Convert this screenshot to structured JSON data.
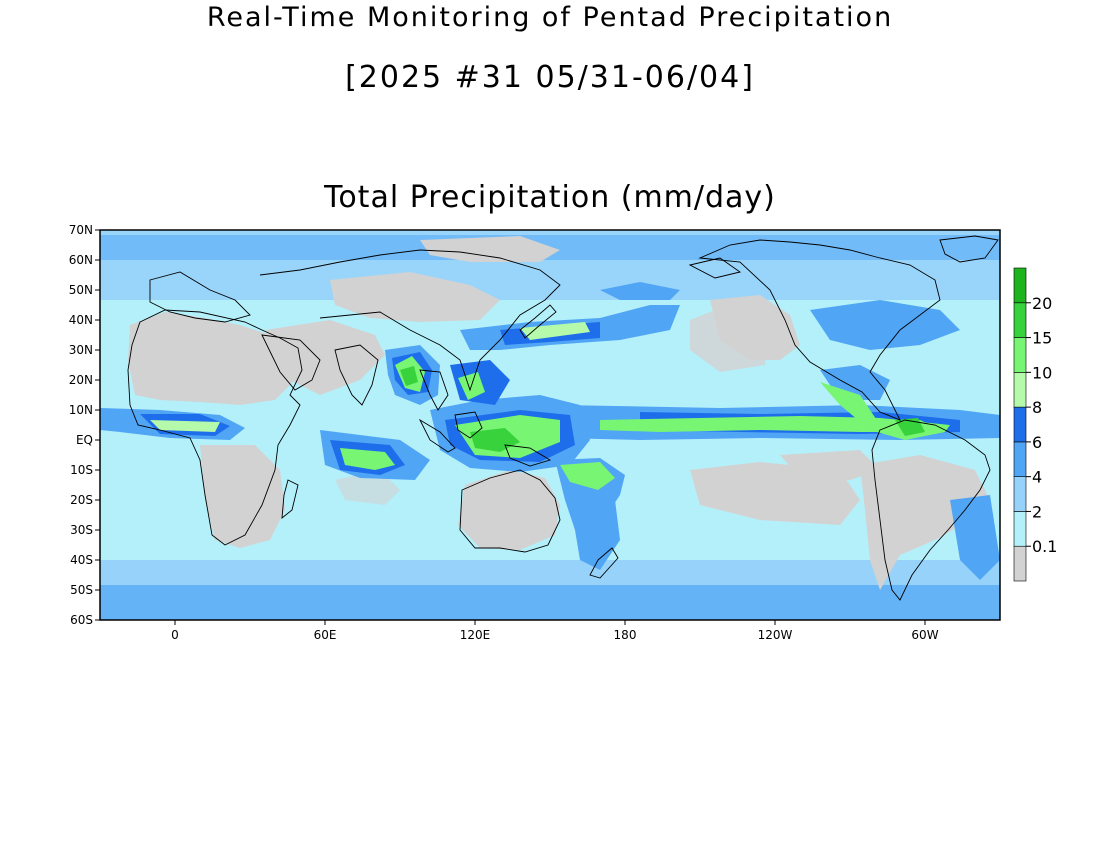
{
  "title": "Real-Time Monitoring of Pentad Precipitation",
  "subtitle": "[2025 #31 05/31-06/04]",
  "map_title": "Total Precipitation (mm/day)",
  "lat_labels": [
    "70N",
    "60N",
    "50N",
    "40N",
    "30N",
    "20N",
    "10N",
    "EQ",
    "10S",
    "20S",
    "30S",
    "40S",
    "50S",
    "60S"
  ],
  "lon_labels": [
    "0",
    "60E",
    "120E",
    "180",
    "120W",
    "60W"
  ],
  "legend": {
    "labels": [
      "0.1",
      "2",
      "4",
      "6",
      "8",
      "10",
      "15",
      "20"
    ],
    "colors": [
      "#d2d2d2",
      "#b4f0fa",
      "#96d2fa",
      "#50a5f5",
      "#1e6eeb",
      "#b4faaa",
      "#78f573",
      "#37d23c",
      "#1eb41e"
    ]
  },
  "colors": {
    "land_dry": "#d2d2d2",
    "ocean_light": "#b4f0fa",
    "blue_mid": "#96d2fa",
    "blue": "#50a5f5",
    "blue_dark": "#1e6eeb",
    "green_light": "#b4faaa",
    "green": "#78f573",
    "green_dark": "#37d23c"
  }
}
